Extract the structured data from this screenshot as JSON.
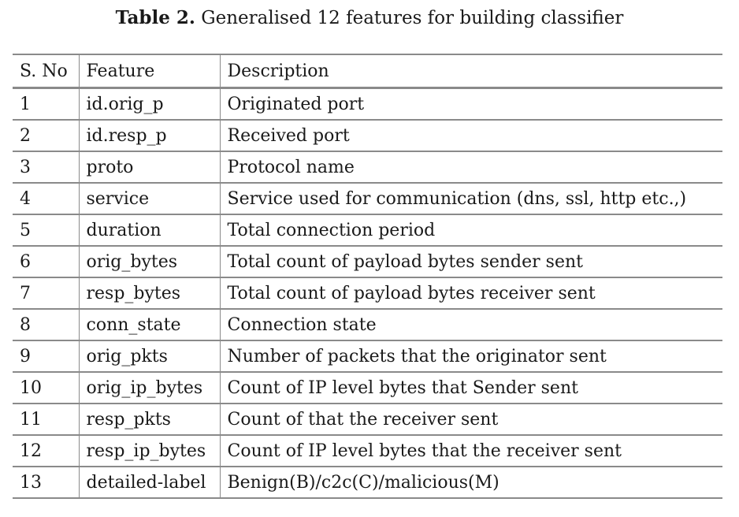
{
  "caption": {
    "label": "Table 2.",
    "text": "Generalised 12 features for building classifier"
  },
  "table": {
    "headers": [
      "S. No",
      "Feature",
      "Description"
    ],
    "rows": [
      [
        "1",
        "id.orig_p",
        "Originated port"
      ],
      [
        "2",
        "id.resp_p",
        "Received port"
      ],
      [
        "3",
        "proto",
        "Protocol name"
      ],
      [
        "4",
        "service",
        "Service used for communication (dns, ssl, http etc.,)"
      ],
      [
        "5",
        "duration",
        "Total connection period"
      ],
      [
        "6",
        "orig_bytes",
        "Total count of payload bytes sender sent"
      ],
      [
        "7",
        "resp_bytes",
        "Total count of payload bytes receiver sent"
      ],
      [
        "8",
        "conn_state",
        "Connection state"
      ],
      [
        "9",
        "orig_pkts",
        "Number of packets that the originator sent"
      ],
      [
        "10",
        "orig_ip_bytes",
        "Count of IP level bytes that Sender sent"
      ],
      [
        "11",
        "resp_pkts",
        "Count of that the receiver sent"
      ],
      [
        "12",
        "resp_ip_bytes",
        "Count of IP level bytes that the receiver sent"
      ],
      [
        "13",
        "detailed-label",
        "Benign(B)/c2c(C)/malicious(M)"
      ]
    ]
  }
}
